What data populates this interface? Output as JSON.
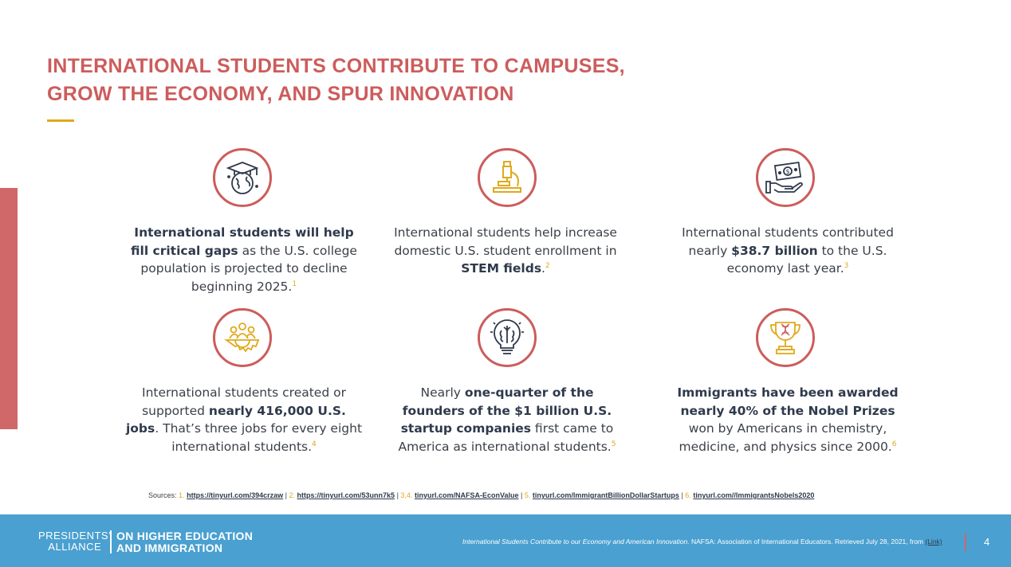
{
  "title": {
    "line1": "INTERNATIONAL STUDENTS CONTRIBUTE TO CAMPUSES,",
    "line2": "GROW THE ECONOMY, AND SPUR INNOVATION"
  },
  "facts": [
    {
      "icon": "graduation-globe-icon",
      "parts": [
        "",
        "International students will help fill critical gaps",
        " as the U.S. college population is projected to decline beginning 2025.",
        "",
        ""
      ],
      "ref": "1"
    },
    {
      "icon": "microscope-icon",
      "parts": [
        "International students help increase domestic U.S. student enrollment in ",
        "STEM fields",
        ".",
        "",
        ""
      ],
      "ref": "2"
    },
    {
      "icon": "money-hand-icon",
      "parts": [
        "International students contributed nearly ",
        "$38.7 billion",
        " to the U.S. economy last year.",
        "",
        ""
      ],
      "ref": "3"
    },
    {
      "icon": "people-gear-icon",
      "parts": [
        "International students created or supported ",
        "nearly 416,000 U.S. jobs",
        ". That’s three jobs for every eight international students.",
        "",
        ""
      ],
      "ref": "4"
    },
    {
      "icon": "brain-lightbulb-icon",
      "parts": [
        "Nearly ",
        "one-quarter of the founders of the $1 billion U.S. startup companies",
        " first came to America as international students.",
        "",
        ""
      ],
      "ref": "5"
    },
    {
      "icon": "trophy-dna-icon",
      "parts": [
        "",
        "Immigrants have been awarded nearly 40% of the Nobel Prizes",
        " won by Americans in chemistry, medicine, and physics since 2000.",
        "",
        ""
      ],
      "ref": "6"
    }
  ],
  "sources": {
    "label": "Sources:",
    "items": [
      {
        "num": "1.",
        "link": "https://tinyurl.com/394crzaw",
        "sep": "|"
      },
      {
        "num": "2.",
        "link": "https://tinyurl.com/53unn7k5",
        "sep": "|"
      },
      {
        "num": "3,4.",
        "link": "tinyurl.com/NAFSA-EconValue",
        "sep": "|"
      },
      {
        "num": "5.",
        "link": "tinyurl.com/ImmigrantBillionDollarStartups",
        "sep": "|"
      },
      {
        "num": "6.",
        "link": "tinyurl.com//ImmigrantsNobels2020",
        "sep": ""
      }
    ]
  },
  "footer": {
    "logo_left_line1": "PRESIDENTS’",
    "logo_left_line2": "ALLIANCE",
    "logo_right_line1": "ON HIGHER EDUCATION",
    "logo_right_line2": "AND IMMIGRATION",
    "citation_title": "International Students Contribute to our Economy and American Innovation.",
    "citation_rest": " NAFSA: Association of International Educators. Retrieved July 28, 2021, from ",
    "citation_link": "(Link)",
    "page_number": "4"
  },
  "colors": {
    "accent_red": "#cd5c5c",
    "accent_gold": "#e0a91c",
    "footer_blue": "#4aa0d0",
    "text_dark": "#2f3a4c"
  }
}
